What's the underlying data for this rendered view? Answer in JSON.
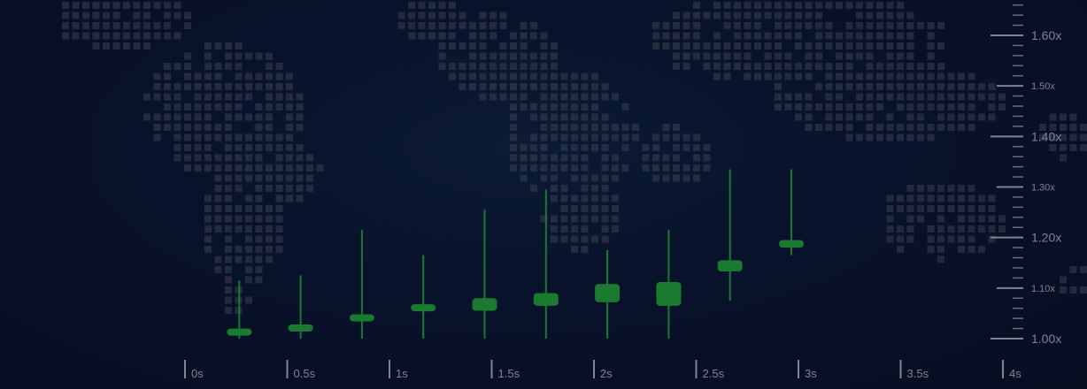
{
  "chart_data": {
    "type": "candlestick",
    "title": "",
    "xlabel": "",
    "ylabel": "",
    "x_ticks": [
      "0s",
      "0.5s",
      "1s",
      "1.5s",
      "2s",
      "2.5s",
      "3s",
      "3.5s",
      "4s"
    ],
    "x_range": [
      0,
      4
    ],
    "y_ticks": [
      "1.00x",
      "1.10x",
      "1.20x",
      "1.30x",
      "1.40x",
      "1.50x",
      "1.60x"
    ],
    "y_major": [
      "1.00x",
      "1.20x",
      "1.40x",
      "1.60x"
    ],
    "y_range": [
      1.0,
      1.66
    ],
    "grid": false,
    "colors": {
      "candle": "#1a7a30",
      "axis": "#7d8593",
      "map_dot": "#3a3f50",
      "background": "#08122a"
    },
    "candles": [
      {
        "t": 0.3,
        "open": 1.008,
        "close": 1.02,
        "low": 1.0,
        "high": 1.115
      },
      {
        "t": 0.6,
        "open": 1.015,
        "close": 1.028,
        "low": 1.0,
        "high": 1.125
      },
      {
        "t": 0.9,
        "open": 1.035,
        "close": 1.048,
        "low": 1.0,
        "high": 1.215
      },
      {
        "t": 1.2,
        "open": 1.055,
        "close": 1.068,
        "low": 1.0,
        "high": 1.165
      },
      {
        "t": 1.5,
        "open": 1.055,
        "close": 1.08,
        "low": 1.0,
        "high": 1.255
      },
      {
        "t": 1.8,
        "open": 1.065,
        "close": 1.09,
        "low": 1.0,
        "high": 1.295
      },
      {
        "t": 2.1,
        "open": 1.072,
        "close": 1.108,
        "low": 1.0,
        "high": 1.175
      },
      {
        "t": 2.4,
        "open": 1.065,
        "close": 1.112,
        "low": 1.0,
        "high": 1.215
      },
      {
        "t": 2.7,
        "open": 1.133,
        "close": 1.155,
        "low": 1.075,
        "high": 1.335
      },
      {
        "t": 3.0,
        "open": 1.18,
        "close": 1.195,
        "low": 1.165,
        "high": 1.335
      }
    ]
  }
}
